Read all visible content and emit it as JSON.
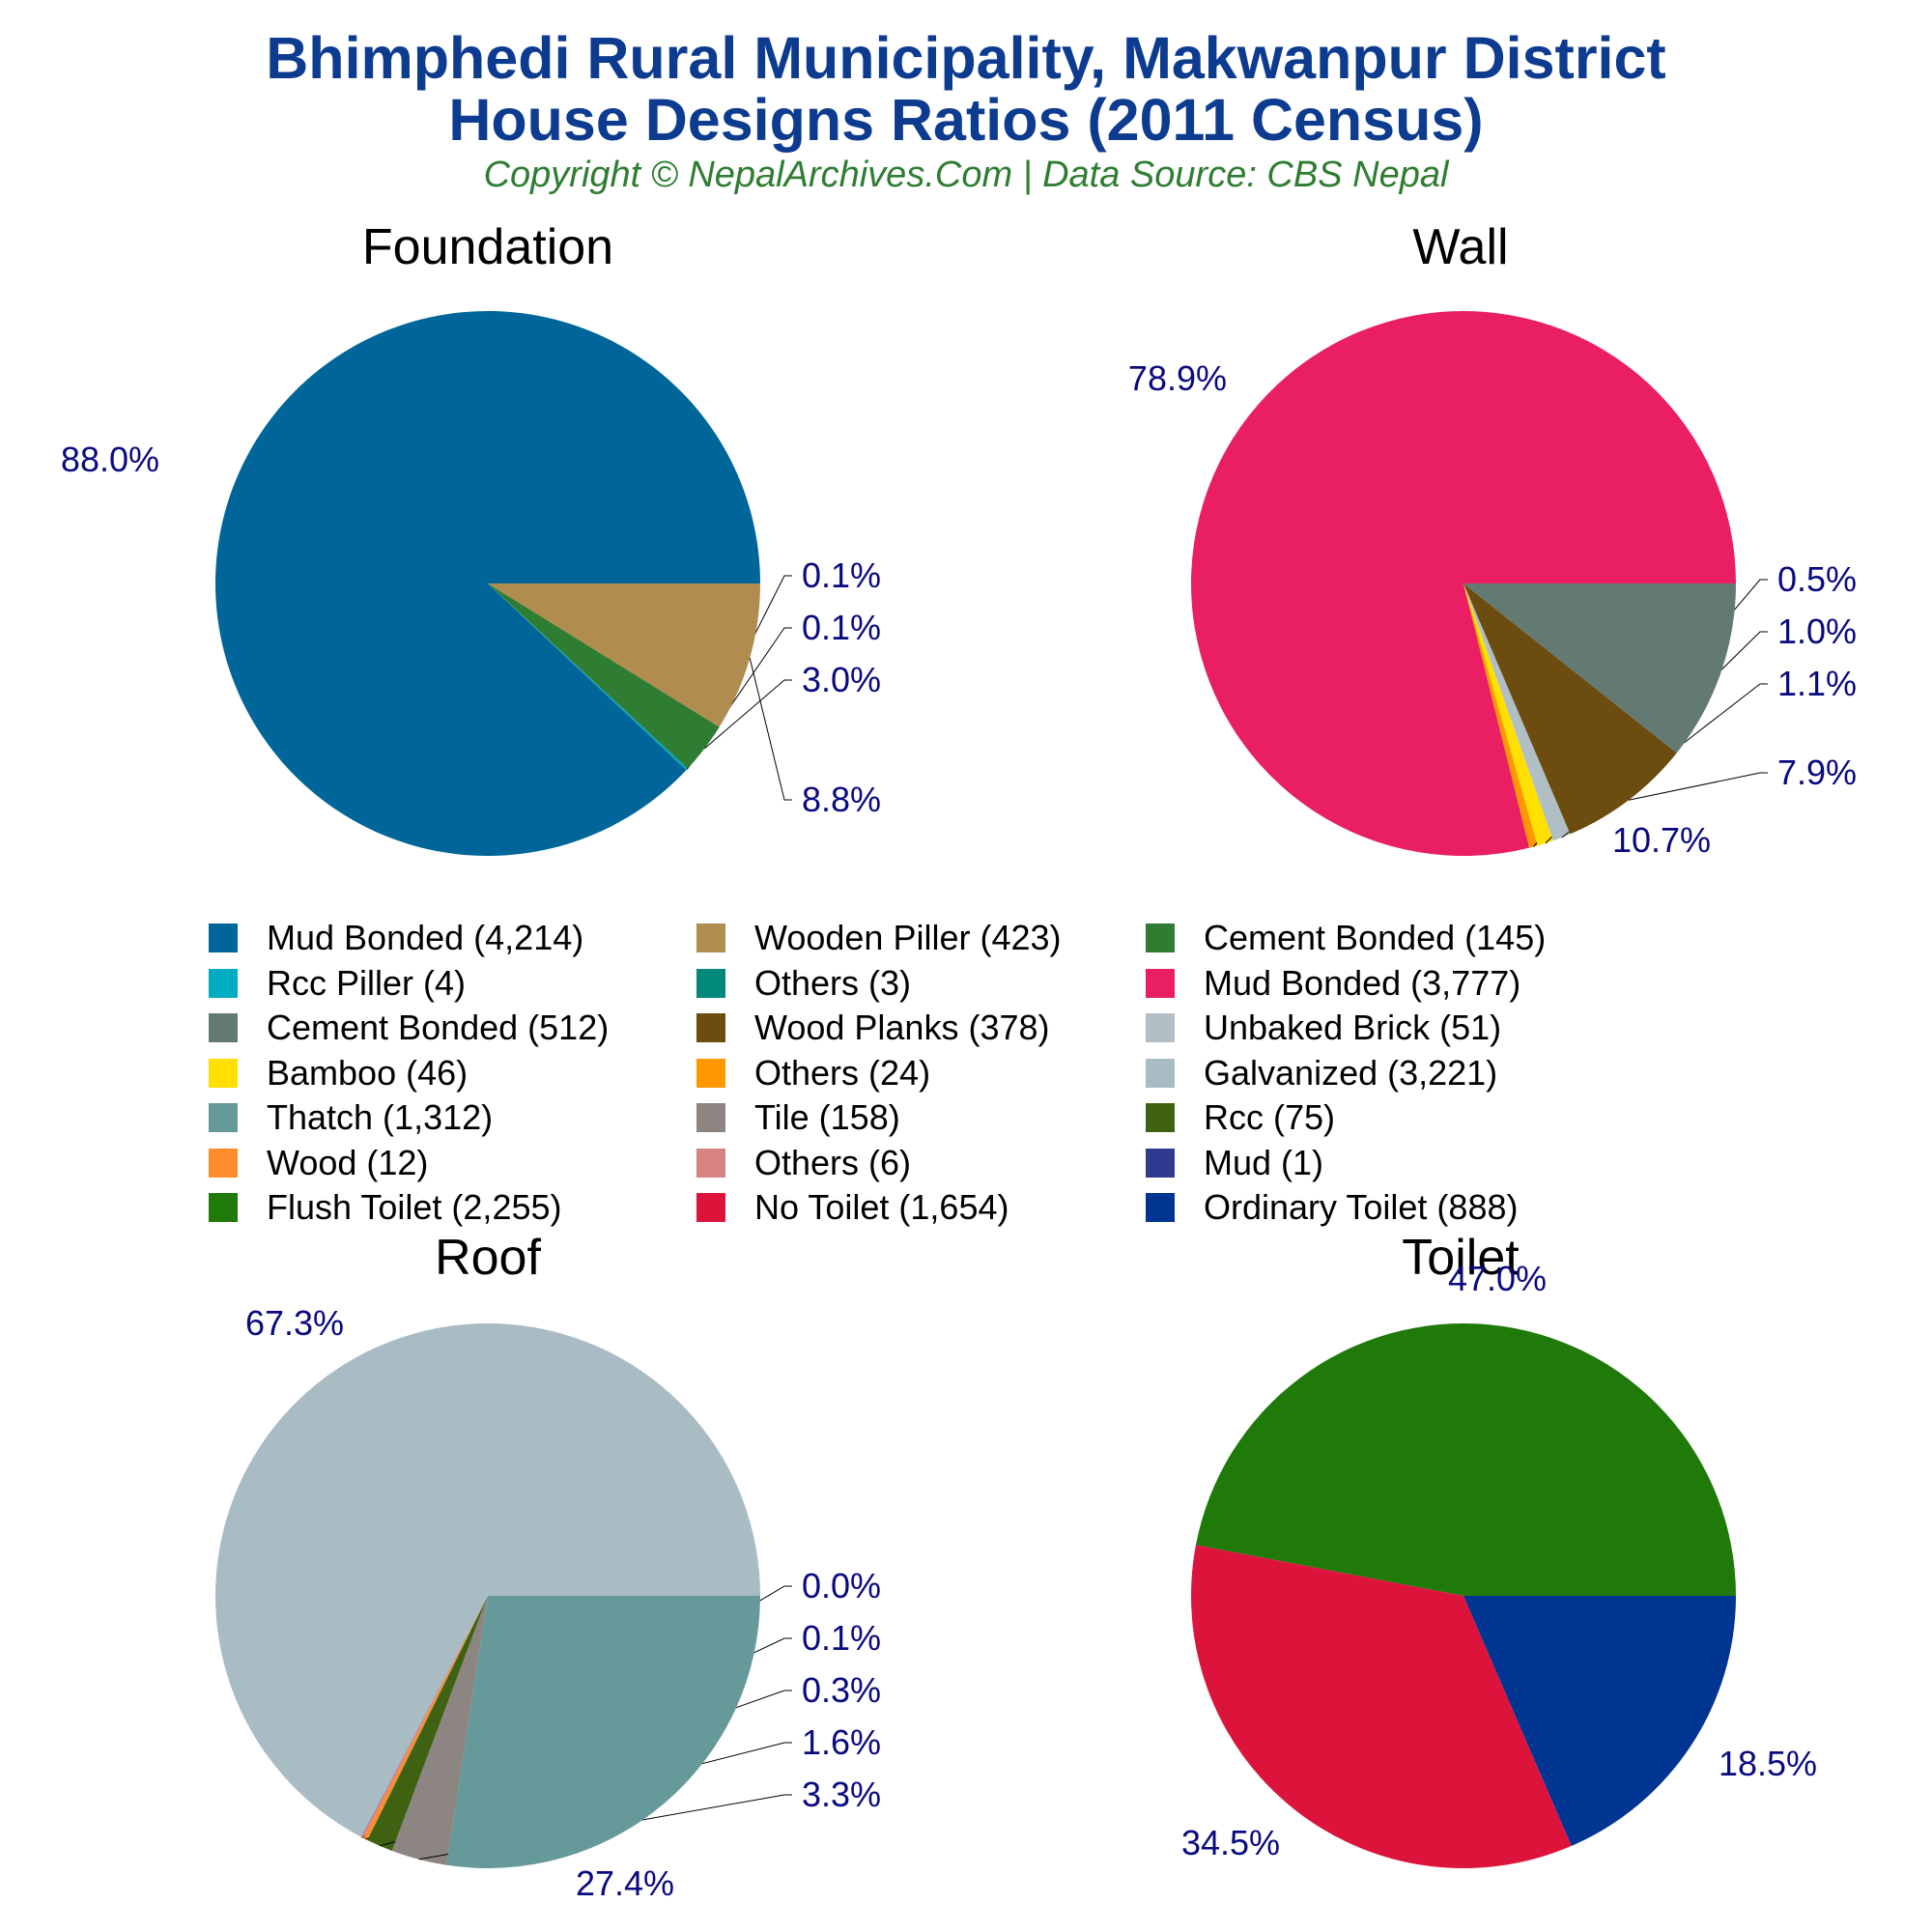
{
  "title_line1": "Bhimphedi Rural Municipality, Makwanpur District",
  "title_line2": "House Designs Ratios (2011 Census)",
  "subtitle": "Copyright © NepalArchives.Com | Data Source: CBS Nepal",
  "chart_data": [
    {
      "type": "pie",
      "title": "Foundation",
      "slices": [
        {
          "label": "Mud Bonded",
          "value": 4214,
          "percent_label": "88.0%",
          "color": "#006699"
        },
        {
          "label": "Rcc Piller",
          "value": 4,
          "percent_label": "0.1%",
          "color": "#00acc1"
        },
        {
          "label": "Others",
          "value": 3,
          "percent_label": "0.1%",
          "color": "#00897b"
        },
        {
          "label": "Cement Bonded",
          "value": 145,
          "percent_label": "3.0%",
          "color": "#2e7d32"
        },
        {
          "label": "Wooden Piller",
          "value": 423,
          "percent_label": "8.8%",
          "color": "#b08d4f"
        }
      ]
    },
    {
      "type": "pie",
      "title": "Wall",
      "slices": [
        {
          "label": "Mud Bonded",
          "value": 3777,
          "percent_label": "78.9%",
          "color": "#e91e63"
        },
        {
          "label": "Others",
          "value": 24,
          "percent_label": "0.5%",
          "color": "#ff9800"
        },
        {
          "label": "Bamboo",
          "value": 46,
          "percent_label": "1.0%",
          "color": "#ffe000"
        },
        {
          "label": "Unbaked Brick",
          "value": 51,
          "percent_label": "1.1%",
          "color": "#b0bec5"
        },
        {
          "label": "Wood Planks",
          "value": 378,
          "percent_label": "7.9%",
          "color": "#6d4c0f"
        },
        {
          "label": "Cement Bonded",
          "value": 512,
          "percent_label": "10.7%",
          "color": "#637a72"
        }
      ]
    },
    {
      "type": "pie",
      "title": "Roof",
      "slices": [
        {
          "label": "Galvanized",
          "value": 3221,
          "percent_label": "67.3%",
          "color": "#a9bcc4"
        },
        {
          "label": "Mud",
          "value": 1,
          "percent_label": "0.0%",
          "color": "#2e3b8f"
        },
        {
          "label": "Others",
          "value": 6,
          "percent_label": "0.1%",
          "color": "#d98282"
        },
        {
          "label": "Wood",
          "value": 12,
          "percent_label": "0.3%",
          "color": "#ff8c2a"
        },
        {
          "label": "Rcc",
          "value": 75,
          "percent_label": "1.6%",
          "color": "#3f6212"
        },
        {
          "label": "Tile",
          "value": 158,
          "percent_label": "3.3%",
          "color": "#8c8582"
        },
        {
          "label": "Thatch",
          "value": 1312,
          "percent_label": "27.4%",
          "color": "#669999"
        }
      ]
    },
    {
      "type": "pie",
      "title": "Toilet",
      "slices": [
        {
          "label": "Flush Toilet",
          "value": 2255,
          "percent_label": "47.0%",
          "color": "#1f7a0a"
        },
        {
          "label": "No Toilet",
          "value": 1654,
          "percent_label": "34.5%",
          "color": "#dc143c"
        },
        {
          "label": "Ordinary Toilet",
          "value": 888,
          "percent_label": "18.5%",
          "color": "#003591"
        }
      ]
    }
  ],
  "legend": [
    {
      "label": "Mud Bonded (4,214)",
      "color": "#006699"
    },
    {
      "label": "Wooden Piller (423)",
      "color": "#b08d4f"
    },
    {
      "label": "Cement Bonded (145)",
      "color": "#2e7d32"
    },
    {
      "label": "Rcc Piller (4)",
      "color": "#00acc1"
    },
    {
      "label": "Others (3)",
      "color": "#00897b"
    },
    {
      "label": "Mud Bonded (3,777)",
      "color": "#e91e63"
    },
    {
      "label": "Cement Bonded (512)",
      "color": "#637a72"
    },
    {
      "label": "Wood Planks (378)",
      "color": "#6d4c0f"
    },
    {
      "label": "Unbaked Brick (51)",
      "color": "#b0bec5"
    },
    {
      "label": "Bamboo (46)",
      "color": "#ffe000"
    },
    {
      "label": "Others (24)",
      "color": "#ff9800"
    },
    {
      "label": "Galvanized (3,221)",
      "color": "#a9bcc4"
    },
    {
      "label": "Thatch (1,312)",
      "color": "#669999"
    },
    {
      "label": "Tile (158)",
      "color": "#8c8582"
    },
    {
      "label": "Rcc (75)",
      "color": "#3f6212"
    },
    {
      "label": "Wood (12)",
      "color": "#ff8c2a"
    },
    {
      "label": "Others (6)",
      "color": "#d98282"
    },
    {
      "label": "Mud (1)",
      "color": "#2e3b8f"
    },
    {
      "label": "Flush Toilet (2,255)",
      "color": "#1f7a0a"
    },
    {
      "label": "No Toilet (1,654)",
      "color": "#dc143c"
    },
    {
      "label": "Ordinary Toilet (888)",
      "color": "#003591"
    }
  ]
}
